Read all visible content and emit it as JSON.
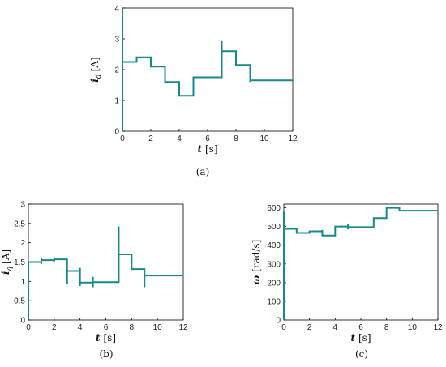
{
  "chart_data": [
    {
      "type": "line",
      "id": "a",
      "caption": "(a)",
      "xlabel_italic": "t",
      "xlabel_unit": "[s]",
      "ylabel_base": "i",
      "ylabel_sub": "d",
      "ylabel_unit": "[A]",
      "xlim": [
        0,
        12
      ],
      "ylim": [
        0,
        4
      ],
      "xticks": [
        0,
        2,
        4,
        6,
        8,
        10,
        12
      ],
      "yticks": [
        0,
        1,
        2,
        3,
        4
      ],
      "grid": false,
      "series": [
        {
          "color": "#17898a",
          "x": [
            0,
            0,
            0,
            1,
            1,
            2,
            2,
            3,
            3,
            3,
            3,
            4,
            4,
            5,
            5,
            7,
            7,
            7,
            7,
            8,
            8,
            9,
            9,
            9,
            9,
            12
          ],
          "y": [
            0,
            4,
            2.25,
            2.25,
            2.4,
            2.4,
            2.1,
            2.1,
            1.55,
            1.75,
            1.6,
            1.6,
            1.15,
            1.15,
            1.75,
            1.75,
            1.75,
            2.95,
            2.6,
            2.6,
            2.15,
            2.15,
            1.6,
            1.7,
            1.65,
            1.65
          ]
        }
      ]
    },
    {
      "type": "line",
      "id": "b",
      "caption": "(b)",
      "xlabel_italic": "t",
      "xlabel_unit": "[s]",
      "ylabel_base": "i",
      "ylabel_sub": "q",
      "ylabel_unit": "[A]",
      "xlim": [
        0,
        12
      ],
      "ylim": [
        0,
        3
      ],
      "xticks": [
        0,
        2,
        4,
        6,
        8,
        10,
        12
      ],
      "yticks": [
        0,
        0.5,
        1,
        1.5,
        2,
        2.5,
        3
      ],
      "grid": false,
      "series": [
        {
          "color": "#17898a",
          "x": [
            0,
            0,
            0,
            1,
            1,
            1,
            1,
            2,
            2,
            2,
            2,
            3,
            3,
            3,
            3,
            4,
            4,
            4,
            4,
            5,
            5,
            5,
            5,
            7,
            7,
            7,
            7,
            8,
            8,
            8,
            8,
            9,
            9,
            9,
            9,
            12
          ],
          "y": [
            0,
            1.5,
            1.5,
            1.5,
            1.45,
            1.6,
            1.55,
            1.55,
            1.5,
            1.62,
            1.57,
            1.57,
            0.92,
            1.32,
            1.27,
            1.27,
            0.88,
            1.35,
            0.97,
            0.97,
            0.85,
            1.12,
            0.98,
            0.98,
            0.98,
            2.42,
            1.7,
            1.7,
            1.65,
            1.7,
            1.32,
            1.32,
            0.85,
            1.18,
            1.15,
            1.15
          ]
        }
      ]
    },
    {
      "type": "line",
      "id": "c",
      "caption": "(c)",
      "xlabel_italic": "t",
      "xlabel_unit": "[s]",
      "ylabel_base": "ω",
      "ylabel_sub": "",
      "ylabel_unit": "[rad/s]",
      "xlim": [
        0,
        12
      ],
      "ylim": [
        0,
        620
      ],
      "xticks": [
        0,
        2,
        4,
        6,
        8,
        10,
        12
      ],
      "yticks": [
        0,
        100,
        200,
        300,
        400,
        500,
        600
      ],
      "grid": false,
      "series": [
        {
          "color": "#17898a",
          "x": [
            0,
            0,
            0,
            1,
            1,
            2,
            2,
            3,
            3,
            3,
            3,
            4,
            4,
            5,
            5,
            5,
            5,
            7,
            7,
            8,
            8,
            9,
            9,
            12
          ],
          "y": [
            0,
            580,
            488,
            488,
            466,
            466,
            475,
            475,
            458,
            482,
            452,
            452,
            500,
            500,
            485,
            515,
            497,
            497,
            545,
            545,
            600,
            600,
            585,
            585
          ]
        }
      ]
    }
  ]
}
